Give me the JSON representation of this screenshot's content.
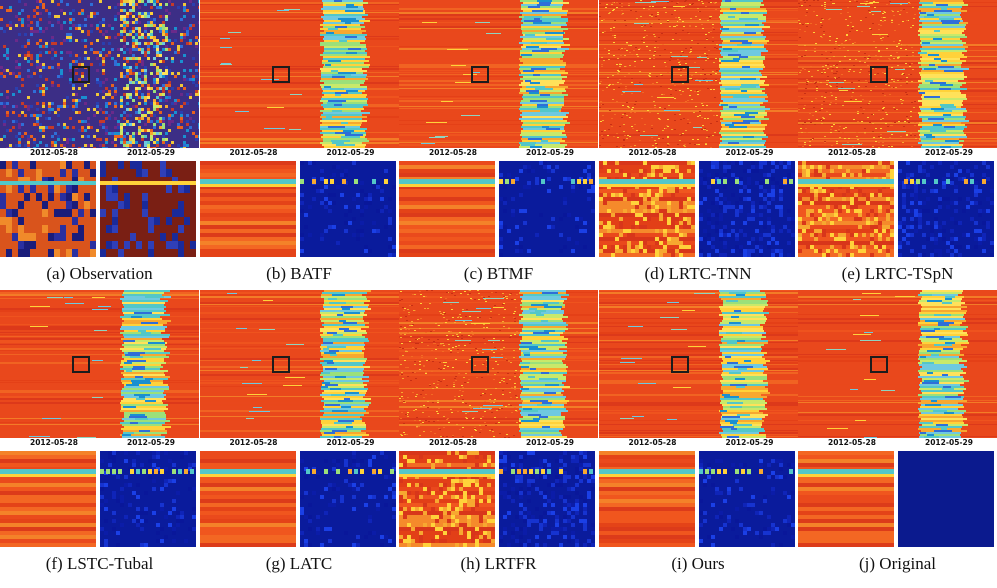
{
  "figure": {
    "date_left": "2012-05-28",
    "date_right": "2012-05-29",
    "colors": {
      "heat_bg": "#e9481c",
      "heat_stripe": "#c72f14",
      "heat_band": "#7fcf9a",
      "zoom_dark": "#0a1b9c",
      "zoom_mid": "#1f3fe0",
      "obs_bg": "#3c2e86",
      "selection_box": "#1c1c1c"
    },
    "panels": [
      {
        "caption": "(a)  Observation",
        "style": "observation"
      },
      {
        "caption": "(b)  BATF",
        "style": "smooth"
      },
      {
        "caption": "(c)  BTMF",
        "style": "smooth"
      },
      {
        "caption": "(d)  LRTC-TNN",
        "style": "noisy"
      },
      {
        "caption": "(e)  LRTC-TSpN",
        "style": "noisy"
      },
      {
        "caption": "(f)  LSTC-Tubal",
        "style": "smooth"
      },
      {
        "caption": "(g)  LATC",
        "style": "smooth"
      },
      {
        "caption": "(h)  LRTFR",
        "style": "noisy"
      },
      {
        "caption": "(i)  Ours",
        "style": "smooth"
      },
      {
        "caption": "(j)  Original",
        "style": "original"
      }
    ]
  }
}
